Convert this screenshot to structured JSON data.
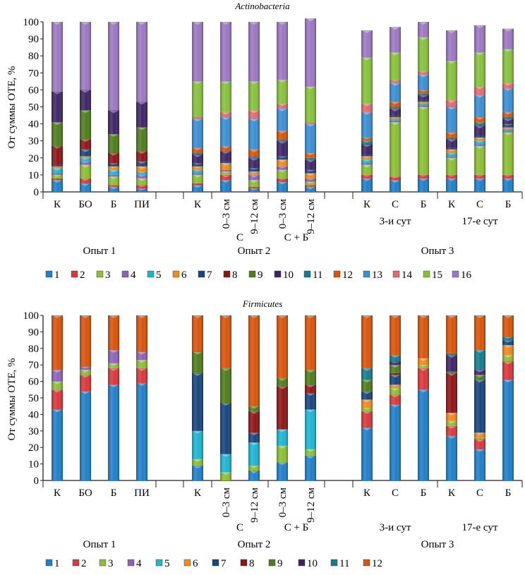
{
  "colors": {
    "1": "#1F7FC9",
    "2": "#D9373B",
    "3": "#8BBF34",
    "4": "#8E62B8",
    "5": "#1DB5D3",
    "6": "#F08A1C",
    "7": "#17457E",
    "8": "#8E1416",
    "9": "#4E7D1C",
    "10": "#3E2466",
    "11": "#137C8E",
    "12": "#D9540A",
    "13": "#3A8ED3",
    "14": "#E06A6E",
    "15": "#86C13C",
    "16": "#9C78C2"
  },
  "chart_data": [
    {
      "type": "bar",
      "stacked": true,
      "title": "Actinobacteria",
      "xlabel": "",
      "ylabel": "От суммы ОТЕ, %",
      "ylim": [
        0,
        100
      ],
      "yticks": [
        "0",
        "10",
        "20",
        "30",
        "40",
        "50",
        "60",
        "70",
        "80",
        "90",
        "100"
      ],
      "legend": [
        "1",
        "2",
        "3",
        "4",
        "5",
        "6",
        "7",
        "8",
        "9",
        "10",
        "11",
        "12",
        "13",
        "14",
        "15",
        "16"
      ],
      "legend_position": "bottom",
      "categories": [
        "К",
        "БО",
        "Б",
        "ПИ",
        "К",
        "0–3 см",
        "9–12 см",
        "0–3 см",
        "9–12 см",
        "К",
        "С",
        "Б",
        "К",
        "С",
        "Б"
      ],
      "subgroups": [
        {
          "label": "С",
          "span": [
            5,
            6
          ]
        },
        {
          "label": "С + Б",
          "span": [
            7,
            8
          ]
        },
        {
          "label": "3-и сут",
          "span": [
            9,
            11
          ]
        },
        {
          "label": "17-е сут",
          "span": [
            12,
            14
          ]
        }
      ],
      "groups": [
        {
          "label": "Опыт 1",
          "span": [
            0,
            3
          ]
        },
        {
          "label": "Опыт 2",
          "span": [
            4,
            8
          ]
        },
        {
          "label": "Опыт 3",
          "span": [
            9,
            14
          ]
        }
      ],
      "series": [
        {
          "name": "1",
          "values": [
            7,
            5,
            3,
            2,
            4,
            7,
            2,
            6,
            3,
            8,
            7,
            8,
            8,
            8,
            8
          ]
        },
        {
          "name": "2",
          "values": [
            1,
            3,
            1,
            2,
            1,
            3,
            1,
            2,
            1,
            2,
            2,
            2,
            2,
            2,
            2
          ]
        },
        {
          "name": "3",
          "values": [
            2,
            8,
            5,
            4,
            5,
            2,
            4,
            5,
            2,
            6,
            32,
            40,
            10,
            17,
            25
          ]
        },
        {
          "name": "4",
          "values": [
            1,
            2,
            1,
            2,
            1,
            1,
            3,
            2,
            2,
            1,
            1,
            1,
            1,
            1,
            1
          ]
        },
        {
          "name": "5",
          "values": [
            3,
            2,
            3,
            2,
            2,
            0,
            0,
            0,
            0,
            2,
            1,
            1,
            2,
            2,
            1
          ]
        },
        {
          "name": "6",
          "values": [
            1,
            1,
            2,
            3,
            2,
            4,
            2,
            4,
            3,
            2,
            1,
            1,
            2,
            2,
            1
          ]
        },
        {
          "name": "7",
          "values": [
            1,
            4,
            2,
            3,
            2,
            1,
            2,
            2,
            2,
            1,
            1,
            1,
            1,
            1,
            2
          ]
        },
        {
          "name": "8",
          "values": [
            11,
            6,
            6,
            6,
            0,
            0,
            0,
            0,
            0,
            0,
            0,
            0,
            0,
            0,
            0
          ]
        },
        {
          "name": "9",
          "values": [
            14,
            17,
            11,
            14,
            0,
            0,
            0,
            0,
            0,
            0,
            0,
            0,
            0,
            0,
            0
          ]
        },
        {
          "name": "10",
          "values": [
            18,
            12,
            14,
            15,
            5,
            6,
            6,
            9,
            6,
            6,
            4,
            3,
            5,
            6,
            3
          ]
        },
        {
          "name": "11",
          "values": [
            0,
            0,
            0,
            0,
            1,
            0,
            1,
            1,
            1,
            2,
            1,
            1,
            1,
            2,
            1
          ]
        },
        {
          "name": "12",
          "values": [
            0,
            0,
            0,
            0,
            3,
            3,
            4,
            5,
            3,
            2,
            3,
            2,
            3,
            3,
            3
          ]
        },
        {
          "name": "13",
          "values": [
            0,
            0,
            0,
            0,
            17,
            17,
            18,
            13,
            17,
            15,
            11,
            9,
            15,
            13,
            14
          ]
        },
        {
          "name": "14",
          "values": [
            0,
            0,
            0,
            0,
            1,
            3,
            5,
            3,
            1,
            5,
            2,
            2,
            4,
            5,
            3
          ]
        },
        {
          "name": "15",
          "values": [
            0,
            0,
            0,
            0,
            21,
            18,
            17,
            14,
            21,
            27,
            16,
            20,
            23,
            20,
            20
          ]
        },
        {
          "name": "16",
          "values": [
            41,
            40,
            52,
            47,
            35,
            35,
            35,
            34,
            40,
            16,
            15,
            9,
            18,
            16,
            12
          ]
        }
      ]
    },
    {
      "type": "bar",
      "stacked": true,
      "title": "Firmicutes",
      "xlabel": "",
      "ylabel": "От суммы ОТЕ, %",
      "ylim": [
        0,
        100
      ],
      "yticks": [
        "0",
        "10",
        "20",
        "30",
        "40",
        "50",
        "60",
        "70",
        "80",
        "90",
        "100"
      ],
      "legend": [
        "1",
        "2",
        "3",
        "4",
        "5",
        "6",
        "7",
        "8",
        "9",
        "10",
        "11",
        "12"
      ],
      "legend_position": "bottom",
      "categories": [
        "К",
        "БО",
        "Б",
        "ПИ",
        "К",
        "0–3 см",
        "9–12 см",
        "0–3 см",
        "9–12 см",
        "К",
        "С",
        "Б",
        "К",
        "С",
        "Б"
      ],
      "subgroups": [
        {
          "label": "С",
          "span": [
            5,
            6
          ]
        },
        {
          "label": "С + Б",
          "span": [
            7,
            8
          ]
        },
        {
          "label": "3-и сут",
          "span": [
            9,
            11
          ]
        },
        {
          "label": "17-е сут",
          "span": [
            12,
            14
          ]
        }
      ],
      "groups": [
        {
          "label": "Опыт 1",
          "span": [
            0,
            3
          ]
        },
        {
          "label": "Опыт 2",
          "span": [
            4,
            8
          ]
        },
        {
          "label": "Опыт 3",
          "span": [
            9,
            14
          ]
        }
      ],
      "series": [
        {
          "name": "1",
          "values": [
            43,
            54,
            58,
            59,
            9,
            0,
            6,
            11,
            15,
            32,
            46,
            55,
            27,
            19,
            61
          ]
        },
        {
          "name": "2",
          "values": [
            12,
            10,
            10,
            9,
            0,
            0,
            0,
            0,
            0,
            10,
            6,
            13,
            6,
            6,
            11
          ]
        },
        {
          "name": "3",
          "values": [
            5,
            3,
            3,
            5,
            4,
            5,
            3,
            10,
            4,
            2,
            4,
            2,
            3,
            1,
            4
          ]
        },
        {
          "name": "4",
          "values": [
            7,
            2,
            8,
            5,
            0,
            0,
            0,
            0,
            0,
            0,
            0,
            0,
            0,
            0,
            0
          ]
        },
        {
          "name": "5",
          "values": [
            0,
            0,
            0,
            0,
            17,
            11,
            14,
            10,
            24,
            0,
            0,
            0,
            0,
            0,
            0
          ]
        },
        {
          "name": "6",
          "values": [
            0,
            0,
            0,
            0,
            0,
            0,
            0,
            0,
            0,
            5,
            2,
            4,
            5,
            3,
            6
          ]
        },
        {
          "name": "7",
          "values": [
            0,
            0,
            0,
            0,
            35,
            31,
            6,
            0,
            10,
            5,
            6,
            0,
            0,
            32,
            3
          ]
        },
        {
          "name": "8",
          "values": [
            0,
            0,
            0,
            0,
            0,
            0,
            13,
            26,
            5,
            0,
            1,
            0,
            24,
            0,
            0
          ]
        },
        {
          "name": "9",
          "values": [
            0,
            0,
            0,
            0,
            13,
            21,
            3,
            5,
            9,
            7,
            5,
            0,
            1,
            3,
            0
          ]
        },
        {
          "name": "10",
          "values": [
            0,
            0,
            0,
            0,
            0,
            0,
            0,
            0,
            0,
            0,
            2,
            0,
            10,
            3,
            0
          ]
        },
        {
          "name": "11",
          "values": [
            0,
            0,
            0,
            0,
            0,
            0,
            0,
            0,
            0,
            7,
            4,
            0,
            1,
            12,
            2
          ]
        },
        {
          "name": "12",
          "values": [
            33,
            31,
            21,
            22,
            22,
            32,
            55,
            38,
            33,
            32,
            24,
            26,
            23,
            21,
            13
          ]
        }
      ]
    }
  ]
}
